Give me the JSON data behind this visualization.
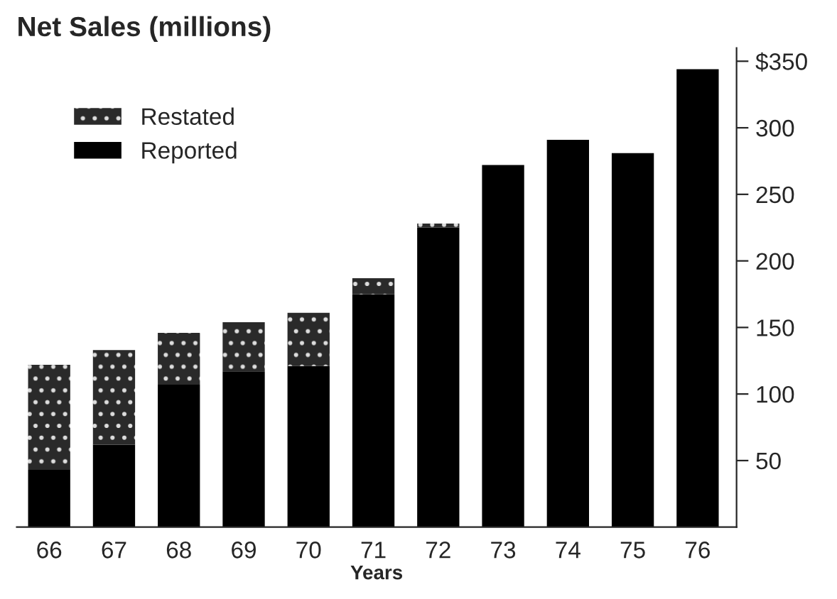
{
  "chart_data": {
    "type": "bar",
    "title": "Net Sales (millions)",
    "xlabel": "Years",
    "categories": [
      "66",
      "67",
      "68",
      "69",
      "70",
      "71",
      "72",
      "73",
      "74",
      "75",
      "76"
    ],
    "stacked": true,
    "series": [
      {
        "name": "Reported",
        "color": "#000000",
        "values": [
          43,
          62,
          107,
          117,
          121,
          175,
          225,
          272,
          291,
          281,
          344
        ]
      },
      {
        "name": "Restated",
        "color": "#2a2a2a",
        "values": [
          79,
          71,
          39,
          37,
          40,
          12,
          3,
          null,
          null,
          null,
          null
        ]
      }
    ],
    "ylim": [
      0,
      360
    ],
    "yticks": [
      50,
      100,
      150,
      200,
      250,
      300,
      {
        "value": 350,
        "label": "$350"
      }
    ],
    "legend": "top left",
    "grid": false
  }
}
